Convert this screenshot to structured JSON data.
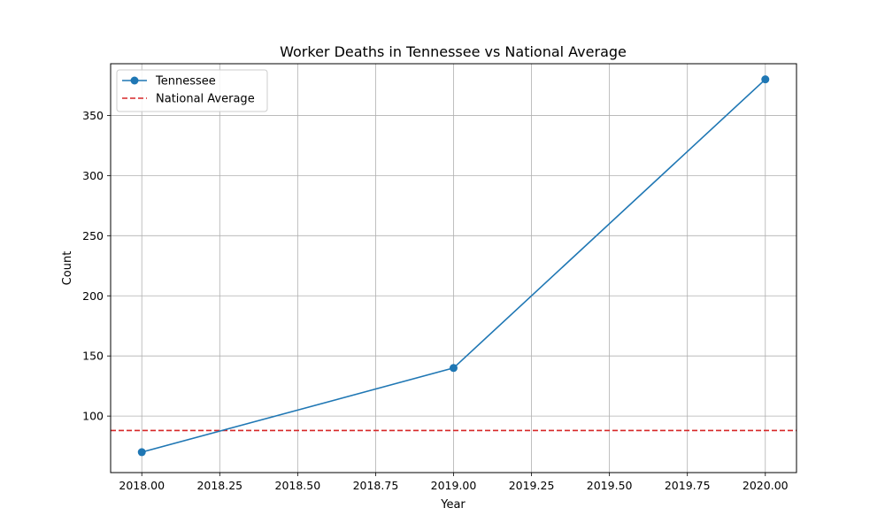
{
  "chart_data": {
    "type": "line",
    "title": "Worker Deaths in Tennessee vs National Average",
    "xlabel": "Year",
    "ylabel": "Count",
    "xlim": [
      2017.9,
      2020.1
    ],
    "ylim": [
      53,
      393
    ],
    "x_ticks": [
      2018.0,
      2018.25,
      2018.5,
      2018.75,
      2019.0,
      2019.25,
      2019.5,
      2019.75,
      2020.0
    ],
    "x_tick_labels": [
      "2018.00",
      "2018.25",
      "2018.50",
      "2018.75",
      "2019.00",
      "2019.25",
      "2019.50",
      "2019.75",
      "2020.00"
    ],
    "y_ticks": [
      100,
      150,
      200,
      250,
      300,
      350
    ],
    "y_tick_labels": [
      "100",
      "150",
      "200",
      "250",
      "300",
      "350"
    ],
    "grid": true,
    "legend_position": "top-left",
    "series": [
      {
        "name": "Tennessee",
        "style": "solid-with-markers",
        "color": "#1f77b4",
        "x": [
          2018,
          2019,
          2020
        ],
        "y": [
          70,
          140,
          380
        ]
      }
    ],
    "reference_lines": [
      {
        "name": "National Average",
        "orientation": "horizontal",
        "style": "dashed",
        "color": "#d62728",
        "y": 88
      }
    ]
  }
}
